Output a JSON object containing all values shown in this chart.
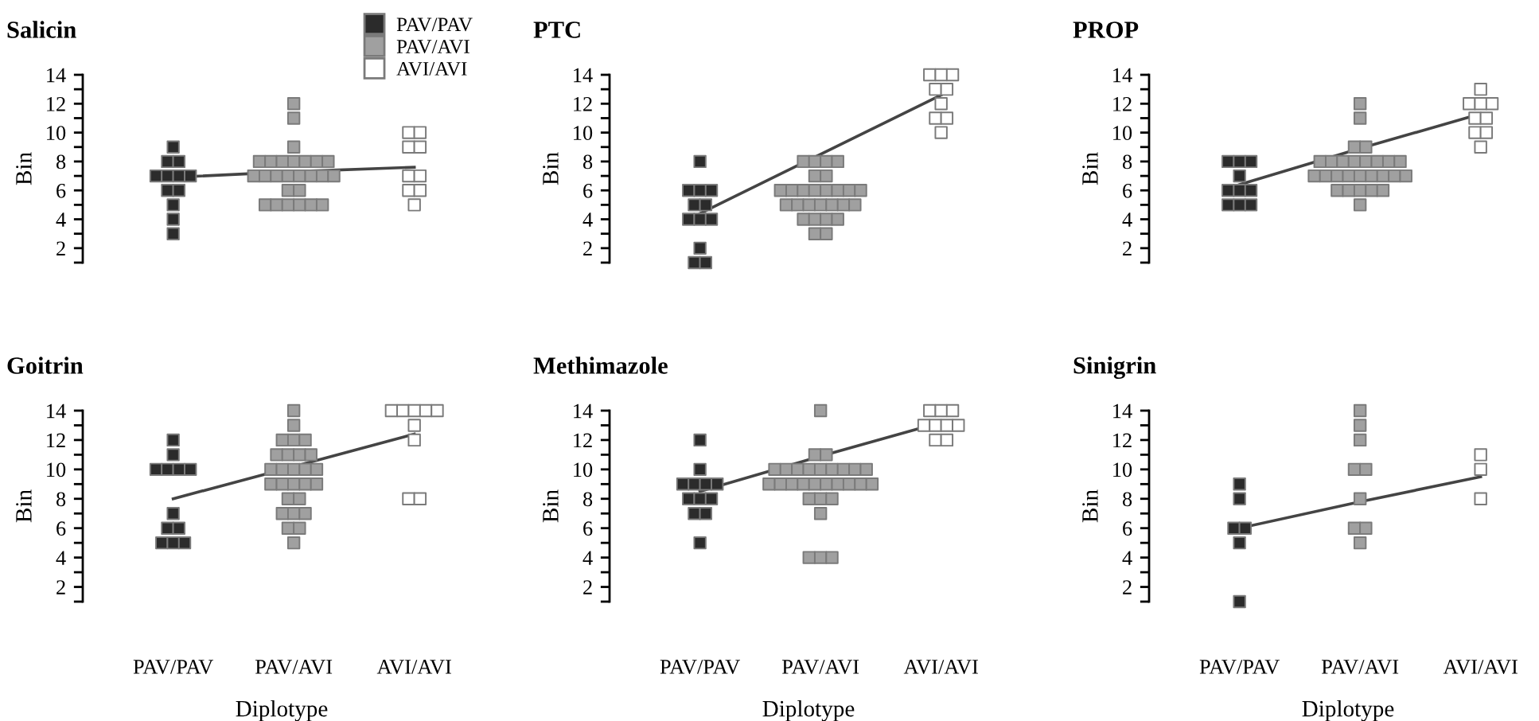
{
  "chart_data": [
    {
      "type": "scatter",
      "title": "Salicin",
      "ylabel": "Bin",
      "categories": [
        "PAV/PAV",
        "PAV/AVI",
        "AVI/AVI"
      ],
      "ylim": [
        1,
        14
      ],
      "yticks": [
        2,
        4,
        6,
        8,
        10,
        12,
        14
      ],
      "tick_labels": "y",
      "marker": "square",
      "legend": "top right",
      "series": [
        {
          "name": "PAV/PAV",
          "color": "#2b2b2b",
          "x": [
            "PAV/PAV",
            "PAV/PAV",
            "PAV/PAV",
            "PAV/PAV",
            "PAV/PAV",
            "PAV/PAV",
            "PAV/PAV",
            "PAV/PAV",
            "PAV/PAV",
            "PAV/PAV",
            "PAV/PAV",
            "PAV/PAV"
          ],
          "values": [
            9,
            8,
            8,
            7,
            7,
            7,
            7,
            6,
            6,
            5,
            4,
            3
          ]
        },
        {
          "name": "PAV/AVI",
          "color": "#a0a0a0",
          "x": [
            "PAV/AVI",
            "PAV/AVI",
            "PAV/AVI",
            "PAV/AVI",
            "PAV/AVI",
            "PAV/AVI",
            "PAV/AVI",
            "PAV/AVI",
            "PAV/AVI",
            "PAV/AVI",
            "PAV/AVI",
            "PAV/AVI",
            "PAV/AVI",
            "PAV/AVI",
            "PAV/AVI",
            "PAV/AVI",
            "PAV/AVI",
            "PAV/AVI",
            "PAV/AVI",
            "PAV/AVI",
            "PAV/AVI",
            "PAV/AVI",
            "PAV/AVI",
            "PAV/AVI",
            "PAV/AVI",
            "PAV/AVI"
          ],
          "values": [
            12,
            11,
            9,
            8,
            8,
            8,
            8,
            8,
            8,
            8,
            7,
            7,
            7,
            7,
            7,
            7,
            7,
            7,
            6,
            6,
            5,
            5,
            5,
            5,
            5,
            5
          ]
        },
        {
          "name": "AVI/AVI",
          "color": "#ffffff",
          "x": [
            "AVI/AVI",
            "AVI/AVI",
            "AVI/AVI",
            "AVI/AVI",
            "AVI/AVI",
            "AVI/AVI",
            "AVI/AVI",
            "AVI/AVI",
            "AVI/AVI"
          ],
          "values": [
            10,
            10,
            9,
            9,
            7,
            7,
            6,
            6,
            5
          ]
        },
        {
          "type": "line",
          "color": "#444444",
          "values": [
            6.9,
            7.3,
            7.6
          ],
          "marker": "none"
        }
      ]
    },
    {
      "type": "scatter",
      "title": "PTC",
      "ylabel": "Bin",
      "categories": [
        "PAV/PAV",
        "PAV/AVI",
        "AVI/AVI"
      ],
      "ylim": [
        1,
        14
      ],
      "yticks": [
        2,
        4,
        6,
        8,
        10,
        12,
        14
      ],
      "tick_labels": "y",
      "marker": "square",
      "series": [
        {
          "color": "#2b2b2b",
          "x": [
            "PAV/PAV",
            "PAV/PAV",
            "PAV/PAV",
            "PAV/PAV",
            "PAV/PAV",
            "PAV/PAV",
            "PAV/PAV",
            "PAV/PAV",
            "PAV/PAV",
            "PAV/PAV",
            "PAV/PAV",
            "PAV/PAV"
          ],
          "values": [
            8,
            6,
            6,
            6,
            5,
            5,
            4,
            4,
            4,
            2,
            1,
            1
          ]
        },
        {
          "color": "#a0a0a0",
          "x": [
            "PAV/AVI",
            "PAV/AVI",
            "PAV/AVI",
            "PAV/AVI",
            "PAV/AVI",
            "PAV/AVI",
            "PAV/AVI",
            "PAV/AVI",
            "PAV/AVI",
            "PAV/AVI",
            "PAV/AVI",
            "PAV/AVI",
            "PAV/AVI",
            "PAV/AVI",
            "PAV/AVI",
            "PAV/AVI",
            "PAV/AVI",
            "PAV/AVI",
            "PAV/AVI",
            "PAV/AVI",
            "PAV/AVI",
            "PAV/AVI",
            "PAV/AVI",
            "PAV/AVI",
            "PAV/AVI",
            "PAV/AVI",
            "PAV/AVI"
          ],
          "values": [
            8,
            8,
            8,
            8,
            7,
            7,
            6,
            6,
            6,
            6,
            6,
            6,
            6,
            6,
            5,
            5,
            5,
            5,
            5,
            5,
            5,
            4,
            4,
            4,
            4,
            3,
            3
          ]
        },
        {
          "color": "#ffffff",
          "x": [
            "AVI/AVI",
            "AVI/AVI",
            "AVI/AVI",
            "AVI/AVI",
            "AVI/AVI",
            "AVI/AVI",
            "AVI/AVI",
            "AVI/AVI",
            "AVI/AVI"
          ],
          "values": [
            14,
            14,
            14,
            13,
            13,
            12,
            11,
            11,
            10
          ]
        },
        {
          "type": "line",
          "color": "#444444",
          "values": [
            4.4,
            8.5,
            12.6
          ],
          "marker": "none"
        }
      ]
    },
    {
      "type": "scatter",
      "title": "PROP",
      "ylabel": "Bin",
      "categories": [
        "PAV/PAV",
        "PAV/AVI",
        "AVI/AVI"
      ],
      "ylim": [
        1,
        14
      ],
      "yticks": [
        2,
        4,
        6,
        8,
        10,
        12,
        14
      ],
      "tick_labels": "y",
      "marker": "square",
      "series": [
        {
          "color": "#2b2b2b",
          "x": [
            "PAV/PAV",
            "PAV/PAV",
            "PAV/PAV",
            "PAV/PAV",
            "PAV/PAV",
            "PAV/PAV",
            "PAV/PAV",
            "PAV/PAV",
            "PAV/PAV",
            "PAV/PAV"
          ],
          "values": [
            8,
            8,
            8,
            7,
            6,
            6,
            6,
            5,
            5,
            5
          ]
        },
        {
          "color": "#a0a0a0",
          "x": [
            "PAV/AVI",
            "PAV/AVI",
            "PAV/AVI",
            "PAV/AVI",
            "PAV/AVI",
            "PAV/AVI",
            "PAV/AVI",
            "PAV/AVI",
            "PAV/AVI",
            "PAV/AVI",
            "PAV/AVI",
            "PAV/AVI",
            "PAV/AVI",
            "PAV/AVI",
            "PAV/AVI",
            "PAV/AVI",
            "PAV/AVI",
            "PAV/AVI",
            "PAV/AVI",
            "PAV/AVI",
            "PAV/AVI",
            "PAV/AVI",
            "PAV/AVI",
            "PAV/AVI",
            "PAV/AVI",
            "PAV/AVI",
            "PAV/AVI"
          ],
          "values": [
            12,
            11,
            9,
            9,
            8,
            8,
            8,
            8,
            8,
            8,
            8,
            8,
            7,
            7,
            7,
            7,
            7,
            7,
            7,
            7,
            7,
            6,
            6,
            6,
            6,
            6,
            5
          ]
        },
        {
          "color": "#ffffff",
          "x": [
            "AVI/AVI",
            "AVI/AVI",
            "AVI/AVI",
            "AVI/AVI",
            "AVI/AVI",
            "AVI/AVI",
            "AVI/AVI",
            "AVI/AVI",
            "AVI/AVI"
          ],
          "values": [
            13,
            12,
            12,
            12,
            11,
            11,
            10,
            10,
            9
          ]
        },
        {
          "type": "line",
          "color": "#444444",
          "values": [
            6.4,
            8.9,
            11.3
          ],
          "marker": "none"
        }
      ]
    },
    {
      "type": "scatter",
      "title": "Goitrin",
      "xlabel": "Diplotype",
      "ylabel": "Bin",
      "categories": [
        "PAV/PAV",
        "PAV/AVI",
        "AVI/AVI"
      ],
      "ylim": [
        1,
        14
      ],
      "yticks": [
        2,
        4,
        6,
        8,
        10,
        12,
        14
      ],
      "marker": "square",
      "series": [
        {
          "color": "#2b2b2b",
          "x": [
            "PAV/PAV",
            "PAV/PAV",
            "PAV/PAV",
            "PAV/PAV",
            "PAV/PAV",
            "PAV/PAV",
            "PAV/PAV",
            "PAV/PAV",
            "PAV/PAV",
            "PAV/PAV",
            "PAV/PAV",
            "PAV/PAV"
          ],
          "values": [
            12,
            11,
            10,
            10,
            10,
            10,
            7,
            6,
            6,
            5,
            5,
            5
          ]
        },
        {
          "color": "#a0a0a0",
          "x": [
            "PAV/AVI",
            "PAV/AVI",
            "PAV/AVI",
            "PAV/AVI",
            "PAV/AVI",
            "PAV/AVI",
            "PAV/AVI",
            "PAV/AVI",
            "PAV/AVI",
            "PAV/AVI",
            "PAV/AVI",
            "PAV/AVI",
            "PAV/AVI",
            "PAV/AVI",
            "PAV/AVI",
            "PAV/AVI",
            "PAV/AVI",
            "PAV/AVI",
            "PAV/AVI",
            "PAV/AVI",
            "PAV/AVI",
            "PAV/AVI",
            "PAV/AVI",
            "PAV/AVI",
            "PAV/AVI",
            "PAV/AVI",
            "PAV/AVI"
          ],
          "values": [
            14,
            13,
            12,
            12,
            12,
            11,
            11,
            11,
            11,
            10,
            10,
            10,
            10,
            10,
            9,
            9,
            9,
            9,
            9,
            8,
            8,
            7,
            7,
            7,
            6,
            6,
            5
          ]
        },
        {
          "color": "#ffffff",
          "x": [
            "AVI/AVI",
            "AVI/AVI",
            "AVI/AVI",
            "AVI/AVI",
            "AVI/AVI",
            "AVI/AVI",
            "AVI/AVI",
            "AVI/AVI",
            "AVI/AVI"
          ],
          "values": [
            14,
            14,
            14,
            14,
            14,
            13,
            12,
            8,
            8
          ]
        },
        {
          "type": "line",
          "color": "#444444",
          "values": [
            8.0,
            10.2,
            12.4
          ],
          "marker": "none"
        }
      ]
    },
    {
      "type": "scatter",
      "title": "Methimazole",
      "xlabel": "Diplotype",
      "ylabel": "Bin",
      "categories": [
        "PAV/PAV",
        "PAV/AVI",
        "AVI/AVI"
      ],
      "ylim": [
        1,
        14
      ],
      "yticks": [
        2,
        4,
        6,
        8,
        10,
        12,
        14
      ],
      "marker": "square",
      "series": [
        {
          "color": "#2b2b2b",
          "x": [
            "PAV/PAV",
            "PAV/PAV",
            "PAV/PAV",
            "PAV/PAV",
            "PAV/PAV",
            "PAV/PAV",
            "PAV/PAV",
            "PAV/PAV",
            "PAV/PAV",
            "PAV/PAV",
            "PAV/PAV",
            "PAV/PAV"
          ],
          "values": [
            12,
            10,
            9,
            9,
            9,
            9,
            8,
            8,
            8,
            7,
            7,
            5
          ]
        },
        {
          "color": "#a0a0a0",
          "x": [
            "PAV/AVI",
            "PAV/AVI",
            "PAV/AVI",
            "PAV/AVI",
            "PAV/AVI",
            "PAV/AVI",
            "PAV/AVI",
            "PAV/AVI",
            "PAV/AVI",
            "PAV/AVI",
            "PAV/AVI",
            "PAV/AVI",
            "PAV/AVI",
            "PAV/AVI",
            "PAV/AVI",
            "PAV/AVI",
            "PAV/AVI",
            "PAV/AVI",
            "PAV/AVI",
            "PAV/AVI",
            "PAV/AVI",
            "PAV/AVI",
            "PAV/AVI",
            "PAV/AVI",
            "PAV/AVI",
            "PAV/AVI",
            "PAV/AVI",
            "PAV/AVI",
            "PAV/AVI"
          ],
          "values": [
            14,
            11,
            11,
            10,
            10,
            10,
            10,
            10,
            10,
            10,
            10,
            10,
            9,
            9,
            9,
            9,
            9,
            9,
            9,
            9,
            9,
            9,
            8,
            8,
            8,
            7,
            4,
            4,
            4
          ]
        },
        {
          "color": "#ffffff",
          "x": [
            "AVI/AVI",
            "AVI/AVI",
            "AVI/AVI",
            "AVI/AVI",
            "AVI/AVI",
            "AVI/AVI",
            "AVI/AVI",
            "AVI/AVI",
            "AVI/AVI"
          ],
          "values": [
            14,
            14,
            14,
            13,
            13,
            13,
            13,
            12,
            12
          ]
        },
        {
          "type": "line",
          "color": "#444444",
          "values": [
            8.5,
            10.9,
            13.2
          ],
          "marker": "none"
        }
      ]
    },
    {
      "type": "scatter",
      "title": "Sinigrin",
      "xlabel": "Diplotype",
      "ylabel": "Bin",
      "categories": [
        "PAV/PAV",
        "PAV/AVI",
        "AVI/AVI"
      ],
      "ylim": [
        1,
        14
      ],
      "yticks": [
        2,
        4,
        6,
        8,
        10,
        12,
        14
      ],
      "marker": "square",
      "series": [
        {
          "color": "#2b2b2b",
          "x": [
            "PAV/PAV",
            "PAV/PAV",
            "PAV/PAV",
            "PAV/PAV",
            "PAV/PAV",
            "PAV/PAV"
          ],
          "values": [
            9,
            8,
            6,
            6,
            5,
            1
          ]
        },
        {
          "color": "#a0a0a0",
          "x": [
            "PAV/AVI",
            "PAV/AVI",
            "PAV/AVI",
            "PAV/AVI",
            "PAV/AVI",
            "PAV/AVI",
            "PAV/AVI",
            "PAV/AVI",
            "PAV/AVI"
          ],
          "values": [
            14,
            13,
            12,
            10,
            10,
            8,
            6,
            6,
            5
          ]
        },
        {
          "color": "#ffffff",
          "x": [
            "AVI/AVI",
            "AVI/AVI",
            "AVI/AVI"
          ],
          "values": [
            11,
            10,
            8
          ]
        },
        {
          "type": "line",
          "color": "#444444",
          "values": [
            6.0,
            7.8,
            9.5
          ],
          "marker": "none"
        }
      ]
    }
  ]
}
